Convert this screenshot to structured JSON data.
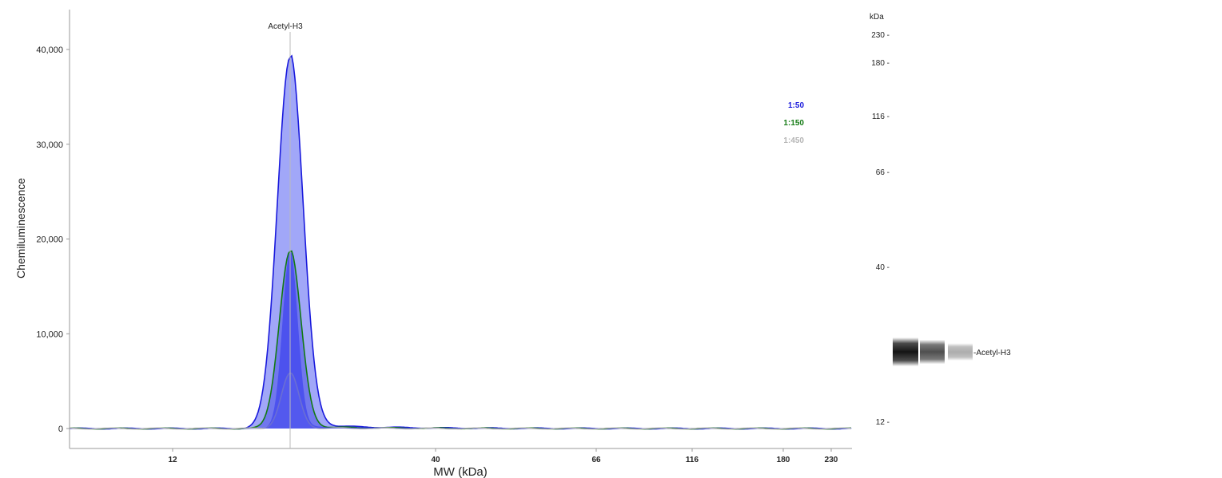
{
  "chart_data": [
    {
      "type": "area",
      "title": "",
      "xlabel": "MW (kDa)",
      "ylabel": "Chemiluminescence",
      "x_ticks": [
        12,
        40,
        66,
        116,
        180,
        230
      ],
      "y_ticks": [
        0,
        10000,
        20000,
        30000,
        40000
      ],
      "y_tick_labels": [
        "0",
        "10,000",
        "20,000",
        "30,000",
        "40,000"
      ],
      "ylim": [
        -1000,
        44000
      ],
      "annotation": "Acetyl-H3",
      "annotation_x_kda": 21,
      "grid": false,
      "legend_position": "top-right",
      "series": [
        {
          "name": "1:50",
          "color": "#1a1adc",
          "fill": "#2e3cf0",
          "peak_kda": 21,
          "peak_value": 39200
        },
        {
          "name": "1:150",
          "color": "#137a13",
          "fill": "#4a50e6",
          "peak_kda": 21,
          "peak_value": 18700
        },
        {
          "name": "1:450",
          "color": "#b4b4b4",
          "fill": "#8d92ec",
          "peak_kda": 21,
          "peak_value": 5800
        }
      ]
    },
    {
      "type": "table",
      "title": "",
      "ylabel": "kDa",
      "ladder_ticks": [
        230,
        180,
        116,
        66,
        40,
        12
      ],
      "ladder_tick_labels": [
        "230 -",
        "180 -",
        "116 -",
        "66 -",
        "40 -",
        "12 -"
      ],
      "band_label": "-Acetyl-H3",
      "lanes": [
        {
          "name": "1:50",
          "intensity": 1.0
        },
        {
          "name": "1:150",
          "intensity": 0.75
        },
        {
          "name": "1:450",
          "intensity": 0.35
        }
      ]
    }
  ]
}
